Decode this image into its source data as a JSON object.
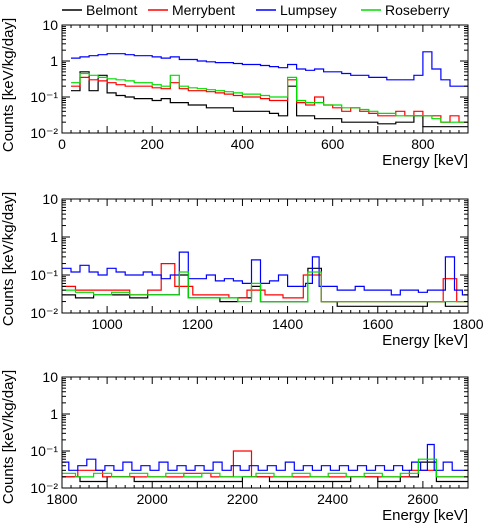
{
  "legend": [
    {
      "name": "Belmont",
      "color": "#000000"
    },
    {
      "name": "Merrybent",
      "color": "#ff0000"
    },
    {
      "name": "Lumpsey",
      "color": "#0000ff"
    },
    {
      "name": "Roseberry",
      "color": "#00dd00"
    }
  ],
  "chart_data": [
    {
      "type": "line",
      "title": "",
      "xlabel": "Energy [keV]",
      "ylabel": "Counts [keV/kg/day]",
      "xlim": [
        0,
        900
      ],
      "ylim": [
        0.01,
        10
      ],
      "yscale": "log",
      "xticks": [
        0,
        200,
        400,
        600,
        800
      ],
      "yticks": [
        {
          "v": 10,
          "label": "10"
        },
        {
          "v": 1,
          "label": "1"
        },
        {
          "v": 0.1,
          "label": "10⁻¹"
        },
        {
          "v": 0.01,
          "label": "10⁻²"
        }
      ],
      "grid": false,
      "legend_position": "top",
      "series": [
        {
          "name": "Belmont",
          "color": "#000000",
          "x": [
            30,
            50,
            70,
            90,
            110,
            130,
            150,
            170,
            190,
            210,
            230,
            250,
            270,
            290,
            310,
            330,
            350,
            370,
            390,
            410,
            430,
            450,
            470,
            490,
            510,
            530,
            550,
            570,
            590,
            610,
            630,
            650,
            670,
            690,
            710,
            730,
            750,
            770,
            790,
            810,
            830,
            850,
            870,
            890
          ],
          "y": [
            0.15,
            0.5,
            0.15,
            0.4,
            0.13,
            0.11,
            0.1,
            0.09,
            0.09,
            0.08,
            0.09,
            0.07,
            0.07,
            0.06,
            0.06,
            0.05,
            0.05,
            0.05,
            0.04,
            0.04,
            0.04,
            0.04,
            0.035,
            0.03,
            0.2,
            0.03,
            0.03,
            0.025,
            0.025,
            0.025,
            0.02,
            0.02,
            0.02,
            0.02,
            0.018,
            0.018,
            0.02,
            0.02,
            0.03,
            0.015,
            0.015,
            0.015,
            0.015,
            0.015
          ]
        },
        {
          "name": "Merrybent",
          "color": "#ff0000",
          "x": [
            30,
            50,
            70,
            90,
            110,
            130,
            150,
            170,
            190,
            210,
            230,
            250,
            270,
            290,
            310,
            330,
            350,
            370,
            390,
            410,
            430,
            450,
            470,
            490,
            510,
            530,
            550,
            570,
            590,
            610,
            630,
            650,
            670,
            690,
            710,
            730,
            750,
            770,
            790,
            810,
            830,
            850,
            870,
            890
          ],
          "y": [
            0.2,
            0.35,
            0.3,
            0.28,
            0.25,
            0.22,
            0.2,
            0.2,
            0.2,
            0.18,
            0.17,
            0.25,
            0.17,
            0.15,
            0.15,
            0.14,
            0.13,
            0.12,
            0.11,
            0.1,
            0.1,
            0.09,
            0.08,
            0.08,
            0.3,
            0.07,
            0.06,
            0.1,
            0.06,
            0.05,
            0.04,
            0.05,
            0.04,
            0.035,
            0.03,
            0.03,
            0.04,
            0.03,
            0.04,
            0.03,
            0.03,
            0.02,
            0.03,
            0.02
          ]
        },
        {
          "name": "Lumpsey",
          "color": "#0000ff",
          "x": [
            30,
            50,
            70,
            90,
            110,
            130,
            150,
            170,
            190,
            210,
            230,
            250,
            270,
            290,
            310,
            330,
            350,
            370,
            390,
            410,
            430,
            450,
            470,
            490,
            510,
            530,
            550,
            570,
            590,
            610,
            630,
            650,
            670,
            690,
            710,
            730,
            750,
            770,
            790,
            810,
            830,
            850,
            870,
            890
          ],
          "y": [
            1.2,
            1.3,
            1.4,
            1.5,
            1.6,
            1.6,
            1.5,
            1.4,
            1.4,
            1.3,
            1.2,
            1.3,
            1.1,
            1.1,
            1.0,
            0.95,
            0.9,
            0.9,
            0.85,
            0.8,
            0.8,
            0.75,
            0.7,
            0.65,
            0.8,
            0.6,
            0.55,
            0.6,
            0.5,
            0.5,
            0.45,
            0.4,
            0.4,
            0.35,
            0.35,
            0.3,
            0.3,
            0.3,
            0.4,
            1.8,
            0.6,
            0.3,
            0.2,
            0.2
          ]
        },
        {
          "name": "Roseberry",
          "color": "#00dd00",
          "x": [
            30,
            50,
            70,
            90,
            110,
            130,
            150,
            170,
            190,
            210,
            230,
            250,
            270,
            290,
            310,
            330,
            350,
            370,
            390,
            410,
            430,
            450,
            470,
            490,
            510,
            530,
            550,
            570,
            590,
            610,
            630,
            650,
            670,
            690,
            710,
            730,
            750,
            770,
            790,
            810,
            830,
            850,
            870,
            890
          ],
          "y": [
            0.25,
            0.45,
            0.4,
            0.35,
            0.32,
            0.3,
            0.28,
            0.25,
            0.25,
            0.22,
            0.2,
            0.4,
            0.2,
            0.18,
            0.17,
            0.16,
            0.15,
            0.14,
            0.13,
            0.12,
            0.12,
            0.11,
            0.1,
            0.1,
            0.35,
            0.08,
            0.07,
            0.07,
            0.06,
            0.06,
            0.05,
            0.05,
            0.045,
            0.04,
            0.035,
            0.035,
            0.03,
            0.03,
            0.03,
            0.03,
            0.025,
            0.02,
            0.02,
            0.02
          ]
        }
      ]
    },
    {
      "type": "line",
      "title": "",
      "xlabel": "Energy [keV]",
      "ylabel": "Counts [keV/kg/day]",
      "xlim": [
        900,
        1800
      ],
      "ylim": [
        0.01,
        10
      ],
      "yscale": "log",
      "xticks": [
        1000,
        1200,
        1400,
        1600,
        1800
      ],
      "yticks": [
        {
          "v": 10,
          "label": "10"
        },
        {
          "v": 1,
          "label": "1"
        },
        {
          "v": 0.1,
          "label": "10⁻¹"
        },
        {
          "v": 0.01,
          "label": "10⁻²"
        }
      ],
      "grid": false,
      "series": [
        {
          "name": "Belmont",
          "color": "#000000",
          "x": [
            910,
            950,
            990,
            1030,
            1070,
            1110,
            1150,
            1170,
            1190,
            1230,
            1270,
            1310,
            1330,
            1350,
            1390,
            1430,
            1460,
            1490,
            1530,
            1570,
            1610,
            1650,
            1690,
            1730,
            1770,
            1790
          ],
          "y": [
            0.03,
            0.025,
            0.03,
            0.03,
            0.025,
            0.03,
            0.03,
            0.1,
            0.025,
            0.025,
            0.02,
            0.025,
            0.05,
            0.02,
            0.02,
            0.02,
            0.15,
            0.02,
            0.015,
            0.015,
            0.015,
            0.015,
            0.015,
            0.02,
            0.015,
            0.015
          ]
        },
        {
          "name": "Merrybent",
          "color": "#ff0000",
          "x": [
            910,
            950,
            990,
            1030,
            1070,
            1110,
            1130,
            1170,
            1210,
            1250,
            1290,
            1330,
            1370,
            1410,
            1460,
            1490,
            1530,
            1570,
            1610,
            1650,
            1690,
            1730,
            1760,
            1790
          ],
          "y": [
            0.05,
            0.04,
            0.04,
            0.04,
            0.03,
            0.04,
            0.2,
            0.05,
            0.03,
            0.03,
            0.025,
            0.04,
            0.03,
            0.025,
            0.1,
            0.02,
            0.02,
            0.02,
            0.02,
            0.02,
            0.02,
            0.02,
            0.08,
            0.02
          ]
        },
        {
          "name": "Lumpsey",
          "color": "#0000ff",
          "x": [
            910,
            930,
            950,
            970,
            990,
            1010,
            1030,
            1050,
            1070,
            1090,
            1110,
            1130,
            1150,
            1170,
            1190,
            1210,
            1230,
            1250,
            1270,
            1290,
            1310,
            1330,
            1350,
            1370,
            1390,
            1410,
            1430,
            1450,
            1460,
            1480,
            1500,
            1520,
            1540,
            1560,
            1580,
            1600,
            1620,
            1640,
            1660,
            1680,
            1700,
            1720,
            1740,
            1760,
            1780,
            1795
          ],
          "y": [
            0.15,
            0.12,
            0.18,
            0.12,
            0.1,
            0.15,
            0.12,
            0.1,
            0.1,
            0.12,
            0.1,
            0.08,
            0.1,
            0.4,
            0.08,
            0.08,
            0.1,
            0.07,
            0.08,
            0.07,
            0.06,
            0.25,
            0.06,
            0.07,
            0.1,
            0.05,
            0.05,
            0.06,
            0.3,
            0.05,
            0.05,
            0.04,
            0.04,
            0.05,
            0.04,
            0.04,
            0.04,
            0.03,
            0.04,
            0.04,
            0.035,
            0.04,
            0.04,
            0.3,
            0.04,
            0.03
          ]
        },
        {
          "name": "Roseberry",
          "color": "#00dd00",
          "x": [
            910,
            950,
            990,
            1030,
            1070,
            1110,
            1150,
            1170,
            1190,
            1230,
            1270,
            1310,
            1330,
            1350,
            1390,
            1430,
            1460,
            1490,
            1530,
            1570,
            1610,
            1650,
            1690,
            1730,
            1770,
            1790
          ],
          "y": [
            0.04,
            0.035,
            0.03,
            0.035,
            0.03,
            0.03,
            0.03,
            0.12,
            0.025,
            0.025,
            0.025,
            0.02,
            0.06,
            0.02,
            0.02,
            0.02,
            0.12,
            0.02,
            0.02,
            0.02,
            0.02,
            0.02,
            0.02,
            0.02,
            0.02,
            0.02
          ]
        }
      ]
    },
    {
      "type": "line",
      "title": "",
      "xlabel": "Energy [keV]",
      "ylabel": "Counts [keV/kg/day]",
      "xlim": [
        1800,
        2700
      ],
      "ylim": [
        0.01,
        10
      ],
      "yscale": "log",
      "xticks": [
        1800,
        2000,
        2200,
        2400,
        2600
      ],
      "yticks": [
        {
          "v": 10,
          "label": "10"
        },
        {
          "v": 1,
          "label": "1"
        },
        {
          "v": 0.1,
          "label": "10⁻¹"
        },
        {
          "v": 0.01,
          "label": "10⁻²"
        }
      ],
      "grid": false,
      "series": [
        {
          "name": "Belmont",
          "color": "#000000",
          "x": [
            1810,
            1870,
            1930,
            1990,
            2050,
            2110,
            2170,
            2230,
            2290,
            2350,
            2410,
            2470,
            2530,
            2570,
            2610,
            2650,
            2690
          ],
          "y": [
            0.02,
            0.015,
            0.02,
            0.015,
            0.015,
            0.015,
            0.015,
            0.02,
            0.015,
            0.015,
            0.015,
            0.02,
            0.015,
            0.02,
            0.05,
            0.015,
            0.015
          ]
        },
        {
          "name": "Merrybent",
          "color": "#ff0000",
          "x": [
            1810,
            1860,
            1920,
            1980,
            2040,
            2100,
            2160,
            2200,
            2240,
            2300,
            2360,
            2420,
            2480,
            2540,
            2600,
            2660,
            2690
          ],
          "y": [
            0.02,
            0.03,
            0.02,
            0.02,
            0.02,
            0.025,
            0.02,
            0.1,
            0.02,
            0.02,
            0.02,
            0.02,
            0.02,
            0.02,
            0.03,
            0.02,
            0.02
          ]
        },
        {
          "name": "Lumpsey",
          "color": "#0000ff",
          "x": [
            1805,
            1825,
            1845,
            1865,
            1885,
            1905,
            1925,
            1945,
            1965,
            1985,
            2005,
            2025,
            2045,
            2065,
            2085,
            2105,
            2125,
            2145,
            2165,
            2185,
            2205,
            2225,
            2245,
            2265,
            2285,
            2305,
            2325,
            2345,
            2365,
            2385,
            2405,
            2425,
            2445,
            2465,
            2485,
            2505,
            2525,
            2545,
            2565,
            2585,
            2605,
            2615,
            2635,
            2655,
            2675,
            2695
          ],
          "y": [
            0.05,
            0.03,
            0.04,
            0.06,
            0.03,
            0.04,
            0.03,
            0.05,
            0.03,
            0.04,
            0.03,
            0.05,
            0.03,
            0.04,
            0.03,
            0.04,
            0.03,
            0.05,
            0.03,
            0.04,
            0.03,
            0.04,
            0.03,
            0.04,
            0.03,
            0.05,
            0.03,
            0.04,
            0.03,
            0.04,
            0.03,
            0.04,
            0.03,
            0.04,
            0.03,
            0.04,
            0.03,
            0.04,
            0.03,
            0.05,
            0.03,
            0.15,
            0.03,
            0.05,
            0.03,
            0.03
          ]
        },
        {
          "name": "Roseberry",
          "color": "#00dd00",
          "x": [
            1810,
            1850,
            1890,
            1930,
            1970,
            2010,
            2050,
            2090,
            2130,
            2170,
            2210,
            2250,
            2290,
            2330,
            2370,
            2410,
            2450,
            2490,
            2530,
            2570,
            2610,
            2650,
            2690
          ],
          "y": [
            0.025,
            0.02,
            0.025,
            0.02,
            0.025,
            0.02,
            0.025,
            0.02,
            0.025,
            0.02,
            0.02,
            0.025,
            0.02,
            0.025,
            0.02,
            0.025,
            0.02,
            0.025,
            0.02,
            0.025,
            0.06,
            0.02,
            0.02
          ]
        }
      ]
    }
  ]
}
